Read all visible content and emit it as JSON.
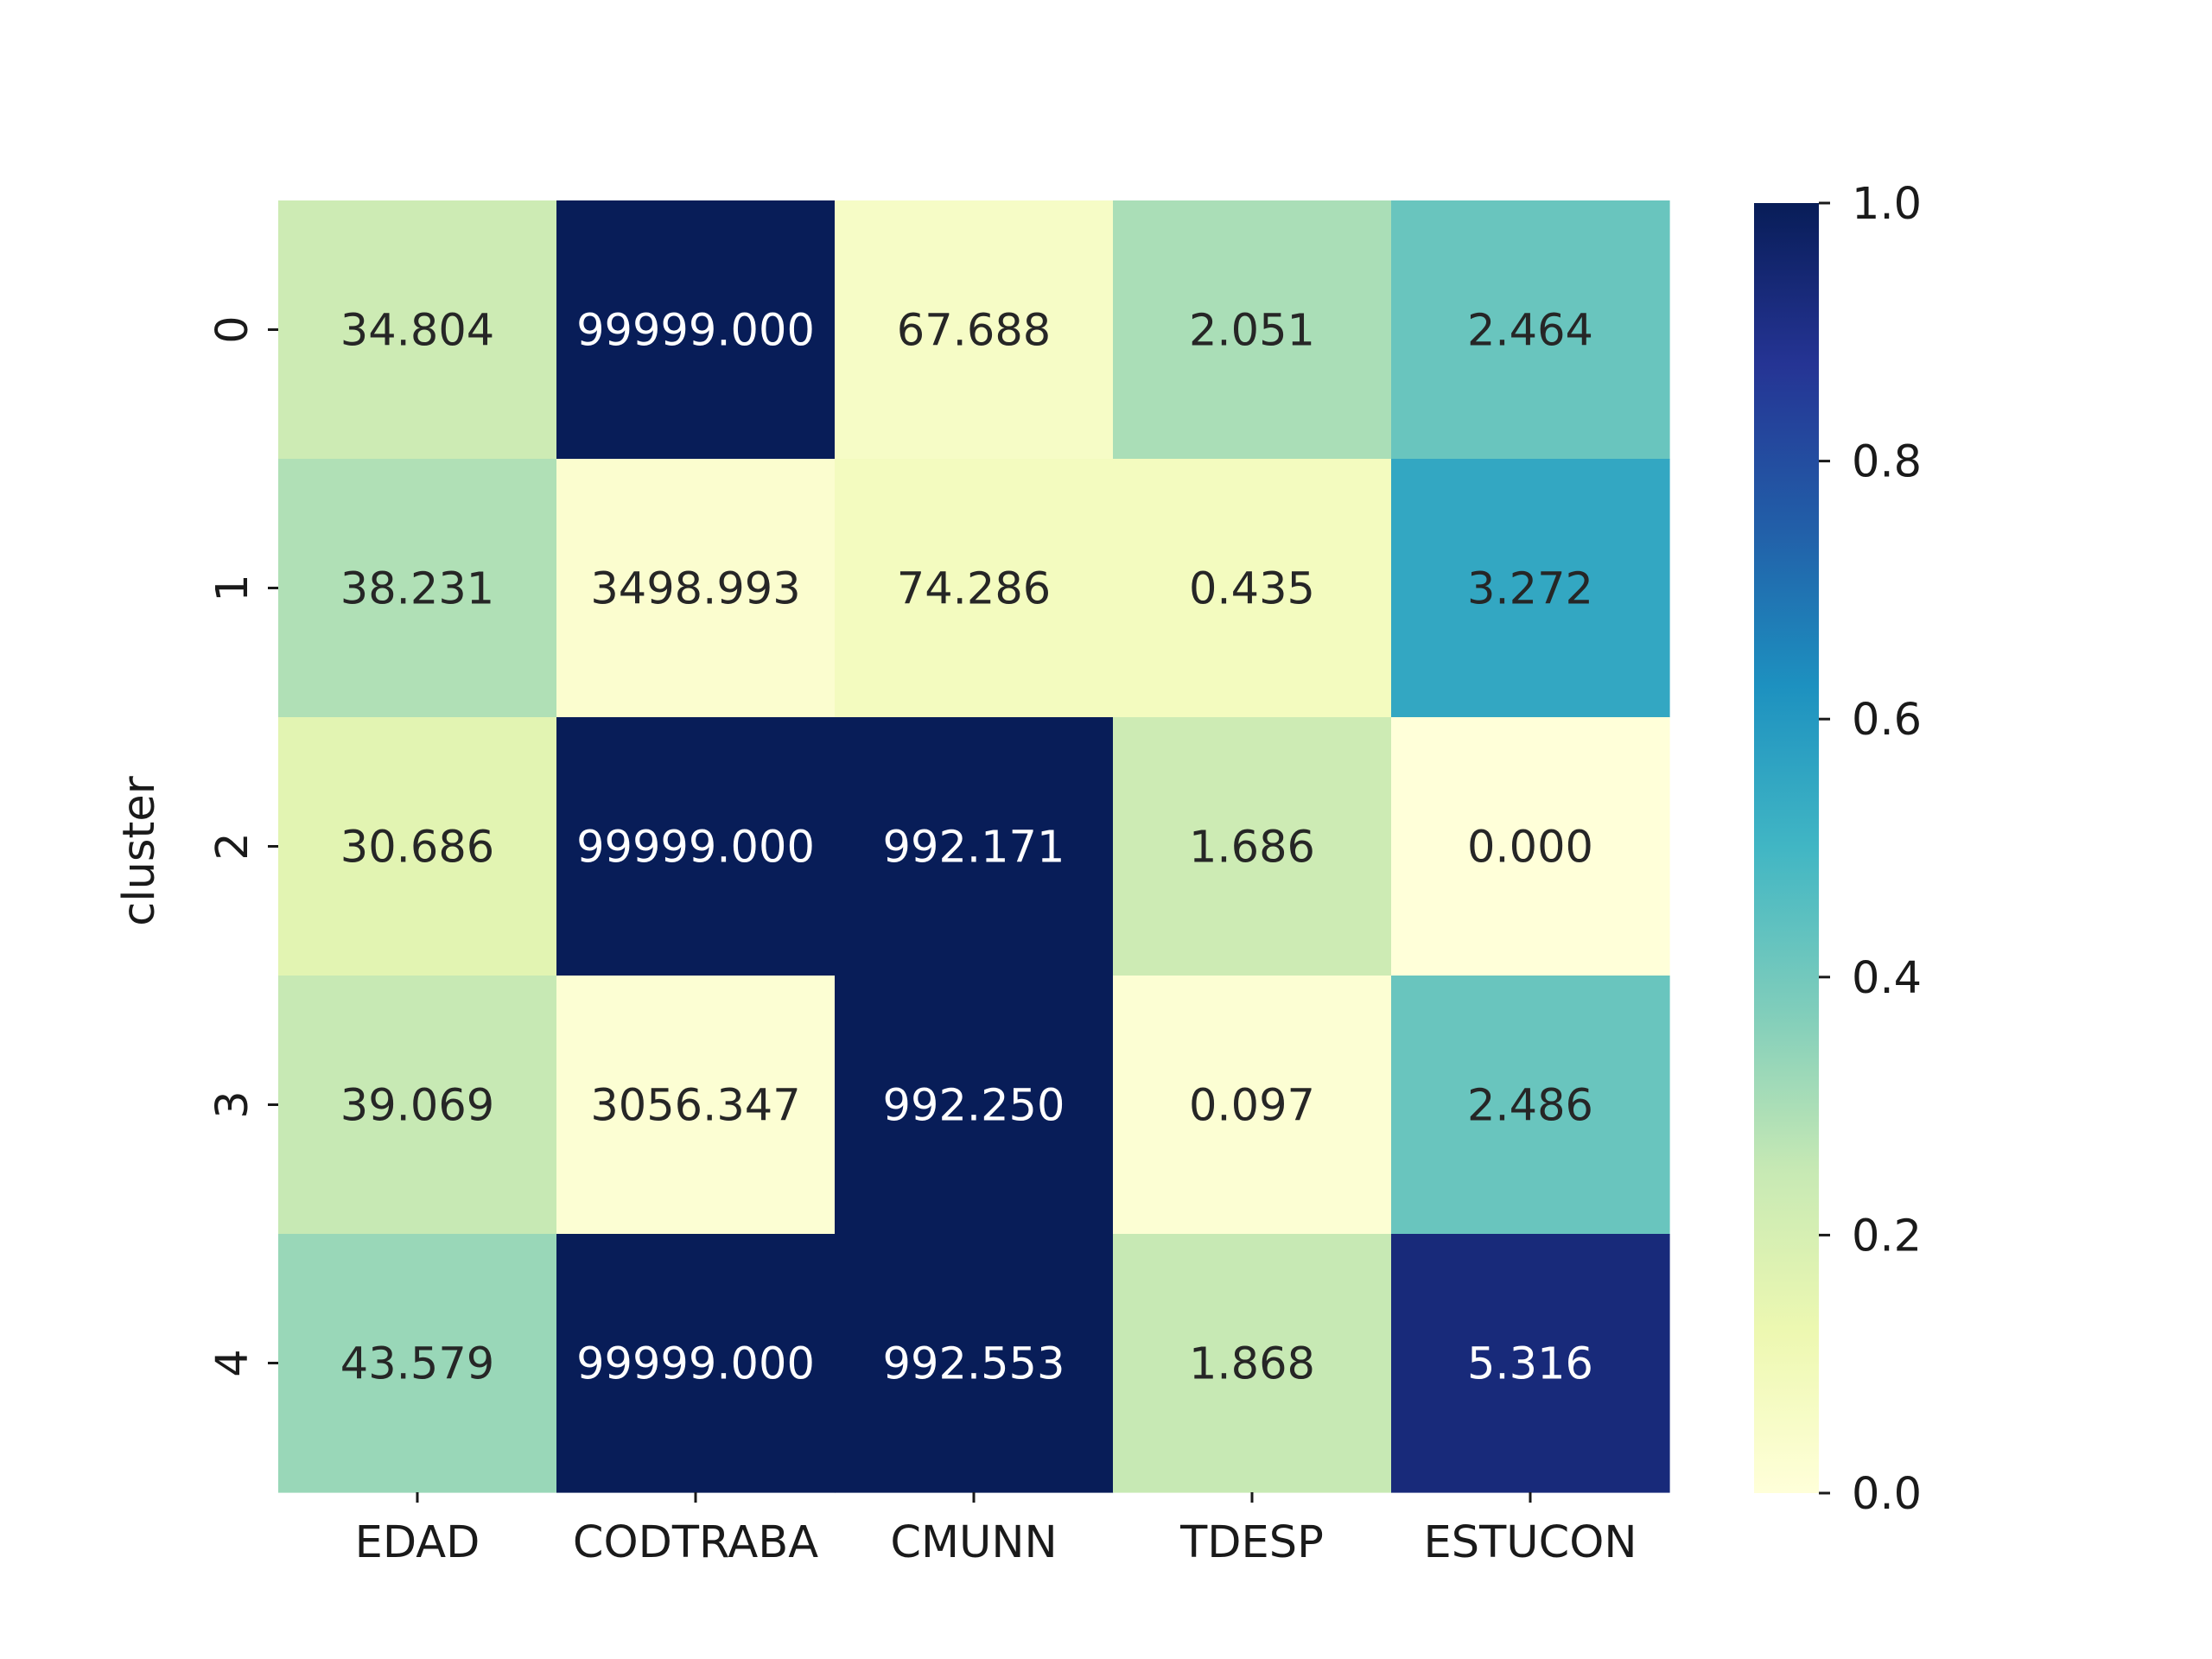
{
  "chart_data": {
    "type": "heatmap",
    "title": "",
    "xlabel": "",
    "ylabel": "cluster",
    "columns": [
      "EDAD",
      "CODTRABA",
      "CMUNN",
      "TDESP",
      "ESTUCON"
    ],
    "rows": [
      "0",
      "1",
      "2",
      "3",
      "4"
    ],
    "cell_labels": [
      [
        "34.804",
        "99999.000",
        "67.688",
        "2.051",
        "2.464"
      ],
      [
        "38.231",
        "3498.993",
        "74.286",
        "0.435",
        "3.272"
      ],
      [
        "30.686",
        "99999.000",
        "992.171",
        "1.686",
        "0.000"
      ],
      [
        "39.069",
        "3056.347",
        "992.250",
        "0.097",
        "2.486"
      ],
      [
        "43.579",
        "99999.000",
        "992.553",
        "1.868",
        "5.316"
      ]
    ],
    "normalized_values": [
      [
        0.23,
        1.0,
        0.06,
        0.3,
        0.42
      ],
      [
        0.29,
        0.03,
        0.08,
        0.08,
        0.55
      ],
      [
        0.16,
        1.0,
        1.0,
        0.23,
        0.0
      ],
      [
        0.25,
        0.02,
        1.0,
        0.02,
        0.42
      ],
      [
        0.33,
        1.0,
        1.0,
        0.25,
        0.93
      ]
    ],
    "colorbar": {
      "range": [
        0.0,
        1.0
      ],
      "ticks": [
        "0.0",
        "0.2",
        "0.4",
        "0.6",
        "0.8",
        "1.0"
      ],
      "colormap": "YlGnBu"
    }
  }
}
